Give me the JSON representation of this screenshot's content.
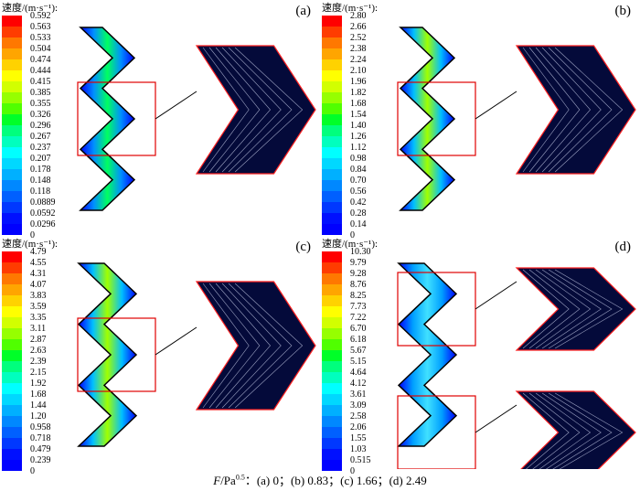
{
  "legend_title": "速度/(m·s⁻¹):",
  "colors": [
    "#ff0000",
    "#ff3c00",
    "#ff7800",
    "#ffa500",
    "#ffd200",
    "#ffff00",
    "#d2ff00",
    "#96ff00",
    "#50ff00",
    "#00ff28",
    "#00ff7d",
    "#00ffbe",
    "#00ffff",
    "#00d8ff",
    "#00b0ff",
    "#0088ff",
    "#0060ff",
    "#0038ff",
    "#0010ff",
    "#0000ff"
  ],
  "panels": [
    {
      "label": "(a)",
      "ticks": [
        "0.592",
        "0.563",
        "0.533",
        "0.504",
        "0.474",
        "0.444",
        "0.415",
        "0.385",
        "0.355",
        "0.326",
        "0.296",
        "0.267",
        "0.237",
        "0.207",
        "0.178",
        "0.148",
        "0.118",
        "0.0889",
        "0.0592",
        "0.0296",
        "0"
      ]
    },
    {
      "label": "(b)",
      "ticks": [
        "2.80",
        "2.66",
        "2.52",
        "2.38",
        "2.24",
        "2.10",
        "1.96",
        "1.82",
        "1.68",
        "1.54",
        "1.40",
        "1.26",
        "1.12",
        "0.98",
        "0.84",
        "0.70",
        "0.56",
        "0.42",
        "0.28",
        "0.14",
        "0"
      ]
    },
    {
      "label": "(c)",
      "ticks": [
        "4.79",
        "4.55",
        "4.31",
        "4.07",
        "3.83",
        "3.59",
        "3.35",
        "3.11",
        "2.87",
        "2.63",
        "2.39",
        "2.15",
        "1.92",
        "1.68",
        "1.44",
        "1.20",
        "0.958",
        "0.718",
        "0.479",
        "0.239",
        "0"
      ]
    },
    {
      "label": "(d)",
      "ticks": [
        "10.30",
        "9.79",
        "9.28",
        "8.76",
        "8.25",
        "7.73",
        "7.22",
        "6.70",
        "6.18",
        "5.67",
        "5.15",
        "4.64",
        "4.12",
        "3.61",
        "3.09",
        "2.58",
        "2.06",
        "1.55",
        "1.03",
        "0.515",
        "0"
      ]
    }
  ],
  "caption": {
    "var": "F",
    "unit": "/Pa",
    "exp": "0.5",
    "rest": "：(a) 0；(b) 0.83；(c) 1.66；(d) 2.49"
  }
}
